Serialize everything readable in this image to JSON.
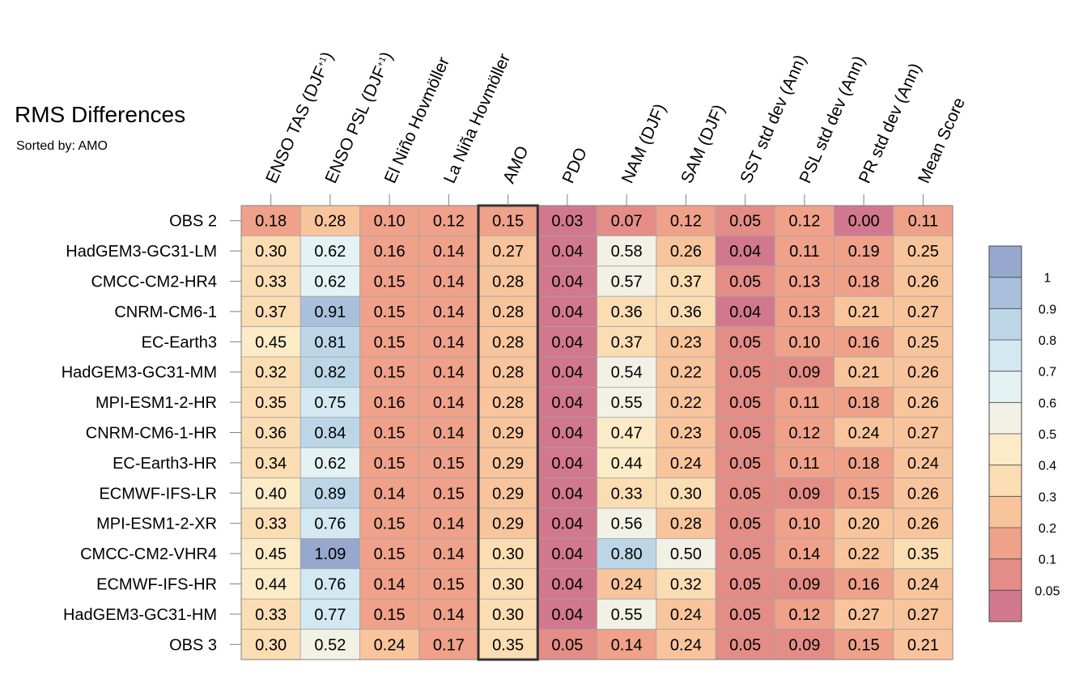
{
  "title": "RMS Differences",
  "subtitle": "Sorted by: AMO",
  "chart_data": {
    "type": "heatmap",
    "title": "RMS Differences",
    "subtitle": "Sorted by: AMO",
    "columns": [
      "ENSO TAS (DJF+1)",
      "ENSO PSL (DJF+1)",
      "El Niño Hovmöller",
      "La Niña Hovmöller",
      "AMO",
      "PDO",
      "NAM (DJF)",
      "SAM (DJF)",
      "SST std dev (Ann)",
      "PSL std dev (Ann)",
      "PR std dev (Ann)",
      "Mean Score"
    ],
    "rows": [
      "OBS 2",
      "HadGEM3-GC31-LM",
      "CMCC-CM2-HR4",
      "CNRM-CM6-1",
      "EC-Earth3",
      "HadGEM3-GC31-MM",
      "MPI-ESM1-2-HR",
      "CNRM-CM6-1-HR",
      "EC-Earth3-HR",
      "ECMWF-IFS-LR",
      "MPI-ESM1-2-XR",
      "CMCC-CM2-VHR4",
      "ECMWF-IFS-HR",
      "HadGEM3-GC31-HM",
      "OBS 3"
    ],
    "values": [
      [
        "0.18",
        "0.28",
        "0.10",
        "0.12",
        "0.15",
        "0.03",
        "0.07",
        "0.12",
        "0.05",
        "0.12",
        "0.00",
        "0.11"
      ],
      [
        "0.30",
        "0.62",
        "0.16",
        "0.14",
        "0.27",
        "0.04",
        "0.58",
        "0.26",
        "0.04",
        "0.11",
        "0.19",
        "0.25"
      ],
      [
        "0.33",
        "0.62",
        "0.15",
        "0.14",
        "0.28",
        "0.04",
        "0.57",
        "0.37",
        "0.05",
        "0.13",
        "0.18",
        "0.26"
      ],
      [
        "0.37",
        "0.91",
        "0.15",
        "0.14",
        "0.28",
        "0.04",
        "0.36",
        "0.36",
        "0.04",
        "0.13",
        "0.21",
        "0.27"
      ],
      [
        "0.45",
        "0.81",
        "0.15",
        "0.14",
        "0.28",
        "0.04",
        "0.37",
        "0.23",
        "0.05",
        "0.10",
        "0.16",
        "0.25"
      ],
      [
        "0.32",
        "0.82",
        "0.15",
        "0.14",
        "0.28",
        "0.04",
        "0.54",
        "0.22",
        "0.05",
        "0.09",
        "0.21",
        "0.26"
      ],
      [
        "0.35",
        "0.75",
        "0.16",
        "0.14",
        "0.28",
        "0.04",
        "0.55",
        "0.22",
        "0.05",
        "0.11",
        "0.18",
        "0.26"
      ],
      [
        "0.36",
        "0.84",
        "0.15",
        "0.14",
        "0.29",
        "0.04",
        "0.47",
        "0.23",
        "0.05",
        "0.12",
        "0.24",
        "0.27"
      ],
      [
        "0.34",
        "0.62",
        "0.15",
        "0.15",
        "0.29",
        "0.04",
        "0.44",
        "0.24",
        "0.05",
        "0.11",
        "0.18",
        "0.24"
      ],
      [
        "0.40",
        "0.89",
        "0.14",
        "0.15",
        "0.29",
        "0.04",
        "0.33",
        "0.30",
        "0.05",
        "0.09",
        "0.15",
        "0.26"
      ],
      [
        "0.33",
        "0.76",
        "0.15",
        "0.14",
        "0.29",
        "0.04",
        "0.56",
        "0.28",
        "0.05",
        "0.10",
        "0.20",
        "0.26"
      ],
      [
        "0.45",
        "1.09",
        "0.15",
        "0.14",
        "0.30",
        "0.04",
        "0.80",
        "0.50",
        "0.05",
        "0.14",
        "0.22",
        "0.35"
      ],
      [
        "0.44",
        "0.76",
        "0.14",
        "0.15",
        "0.30",
        "0.04",
        "0.24",
        "0.32",
        "0.05",
        "0.09",
        "0.16",
        "0.24"
      ],
      [
        "0.33",
        "0.77",
        "0.15",
        "0.14",
        "0.30",
        "0.04",
        "0.55",
        "0.24",
        "0.05",
        "0.12",
        "0.27",
        "0.27"
      ],
      [
        "0.30",
        "0.52",
        "0.24",
        "0.17",
        "0.35",
        "0.05",
        "0.14",
        "0.24",
        "0.05",
        "0.09",
        "0.15",
        "0.21"
      ]
    ],
    "highlighted_column": "AMO",
    "colorbar": {
      "levels": [
        "1",
        "0.9",
        "0.8",
        "0.7",
        "0.6",
        "0.5",
        "0.4",
        "0.3",
        "0.2",
        "0.1",
        "0.05"
      ],
      "colors": [
        "#97a8cf",
        "#a9c0dc",
        "#bcd6e8",
        "#d3e8f0",
        "#e5f2f4",
        "#f2f1e6",
        "#fbebc7",
        "#fbddb4",
        "#f8c49c",
        "#efa18a",
        "#e38d86",
        "#d2788e"
      ]
    }
  }
}
